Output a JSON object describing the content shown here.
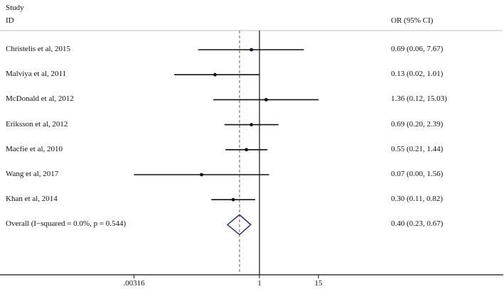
{
  "header": {
    "study_label": "Study",
    "id_label": "ID",
    "effect_label": "OR (95% CI)"
  },
  "colors": {
    "divider": "#bdbdbd",
    "lines": "#111111",
    "overall_dash": "#a05a5a",
    "diamond": "#2e3064"
  },
  "chart_data": {
    "type": "forest",
    "title": "",
    "xlabel": "",
    "ylabel": "",
    "scale": "log",
    "xlim": [
      0.00316,
      316
    ],
    "x_ticks": [
      0.00316,
      1,
      15
    ],
    "x_tick_labels": [
      ".00316",
      "1",
      "15"
    ],
    "null_line": 1,
    "studies": [
      {
        "label": "Christelis et al, 2015",
        "or": 0.69,
        "lower": 0.06,
        "upper": 7.67,
        "text": "0.69 (0.06, 7.67)"
      },
      {
        "label": "Malviya et al, 2011",
        "or": 0.13,
        "lower": 0.02,
        "upper": 1.01,
        "text": "0.13 (0.02, 1.01)"
      },
      {
        "label": "McDonald et al, 2012",
        "or": 1.36,
        "lower": 0.12,
        "upper": 15.03,
        "text": "1.36 (0.12, 15.03)"
      },
      {
        "label": "Eriksson et al, 2012",
        "or": 0.69,
        "lower": 0.2,
        "upper": 2.39,
        "text": "0.69 (0.20, 2.39)"
      },
      {
        "label": "Macfie et al, 2010",
        "or": 0.55,
        "lower": 0.21,
        "upper": 1.44,
        "text": "0.55 (0.21, 1.44)"
      },
      {
        "label": "Wang et al, 2017",
        "or": 0.07,
        "lower": 0.0,
        "upper": 1.56,
        "text": "0.07 (0.00, 1.56)"
      },
      {
        "label": "Khan et al, 2014",
        "or": 0.3,
        "lower": 0.11,
        "upper": 0.82,
        "text": "0.30 (0.11, 0.82)"
      }
    ],
    "overall": {
      "label": "Overall  (I−squared = 0.0%, p = 0.544)",
      "or": 0.4,
      "lower": 0.23,
      "upper": 0.67,
      "text": "0.40 (0.23, 0.67)",
      "i_squared": "0.0%",
      "p_value": 0.544
    }
  }
}
